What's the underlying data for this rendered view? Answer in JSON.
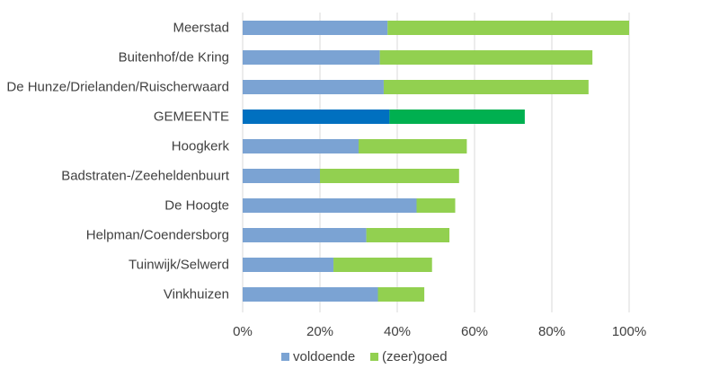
{
  "chart_data": {
    "type": "bar",
    "orientation": "horizontal",
    "stacked": true,
    "categories": [
      "Meerstad",
      "Buitenhof/de Kring",
      "De Hunze/Drielanden/Ruischerwaard",
      "GEMEENTE",
      "Hoogkerk",
      "Badstraten-/Zeeheldenbuurt",
      "De Hoogte",
      "Helpman/Coendersborg",
      "Tuinwijk/Selwerd",
      "Vinkhuizen"
    ],
    "series": [
      {
        "name": "voldoende",
        "values": [
          0.375,
          0.355,
          0.365,
          0.38,
          0.3,
          0.2,
          0.45,
          0.32,
          0.235,
          0.35
        ]
      },
      {
        "name": "(zeer)goed",
        "values": [
          0.625,
          0.55,
          0.53,
          0.35,
          0.28,
          0.36,
          0.1,
          0.215,
          0.255,
          0.12
        ]
      }
    ],
    "x_ticks": [
      "0%",
      "20%",
      "40%",
      "60%",
      "80%",
      "100%"
    ],
    "xlim": [
      0,
      1
    ],
    "grid": "vertical",
    "legend_position": "bottom",
    "colors": {
      "voldoende": "#7ba3d3",
      "zeer_goed": "#92d050",
      "voldoende_highlight": "#0070c0",
      "zeer_goed_highlight": "#00b050",
      "highlight_category": "GEMEENTE"
    }
  }
}
